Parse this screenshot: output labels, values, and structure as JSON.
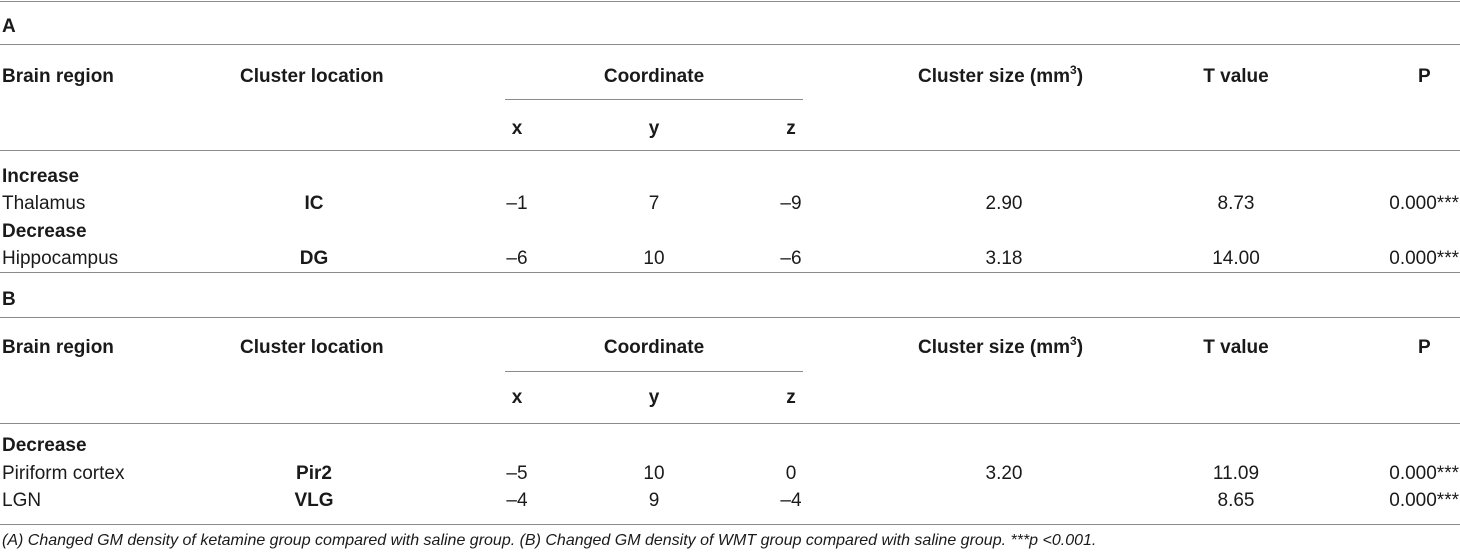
{
  "sections": [
    {
      "label": "A",
      "headers": {
        "brain_region": "Brain region",
        "cluster_location": "Cluster location",
        "coordinate": "Coordinate",
        "cluster_size": "Cluster size (mm",
        "cluster_size_sup": "3",
        "cluster_size_end": ")",
        "t_value": "T value",
        "p": "P",
        "x": "x",
        "y": "y",
        "z": "z"
      },
      "groups": [
        {
          "name": "Increase",
          "rows": [
            {
              "region": "Thalamus",
              "location": "IC",
              "x": "–1",
              "y": "7",
              "z": "–9",
              "size": "2.90",
              "t": "8.73",
              "p": "0.000***"
            }
          ]
        },
        {
          "name": "Decrease",
          "rows": [
            {
              "region": "Hippocampus",
              "location": "DG",
              "x": "–6",
              "y": "10",
              "z": "–6",
              "size": "3.18",
              "t": "14.00",
              "p": "0.000***"
            }
          ]
        }
      ]
    },
    {
      "label": "B",
      "headers": {
        "brain_region": "Brain region",
        "cluster_location": "Cluster location",
        "coordinate": "Coordinate",
        "cluster_size": "Cluster size (mm",
        "cluster_size_sup": "3",
        "cluster_size_end": ")",
        "t_value": "T value",
        "p": "P",
        "x": "x",
        "y": "y",
        "z": "z"
      },
      "groups": [
        {
          "name": "Decrease",
          "rows": [
            {
              "region": "Piriform cortex",
              "location": "Pir2",
              "x": "–5",
              "y": "10",
              "z": "0",
              "size": "3.20",
              "t": "11.09",
              "p": "0.000***"
            },
            {
              "region": "LGN",
              "location": "VLG",
              "x": "–4",
              "y": "9",
              "z": "–4",
              "size": "",
              "t": "8.65",
              "p": "0.000***"
            }
          ]
        }
      ]
    }
  ],
  "footnote": "(A) Changed GM density of ketamine group compared with saline group. (B) Changed GM density of WMT group compared with saline group. ***p <0.001."
}
